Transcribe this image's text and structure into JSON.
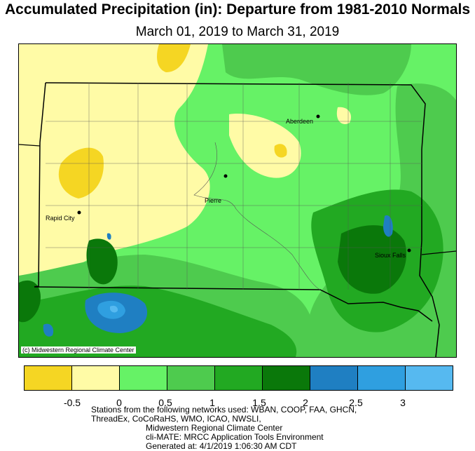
{
  "title": "Accumulated Precipitation (in): Departure from 1981-2010 Normals",
  "subtitle": "March 01, 2019 to March 31, 2019",
  "credit": "(c) Midwestern Regional Climate Center",
  "cities": {
    "aberdeen": "Aberdeen",
    "pierre": "Pierre",
    "rapid_city": "Rapid City",
    "sioux_falls": "Sioux Falls"
  },
  "legend": {
    "colors": [
      "#f5d623",
      "#fffba6",
      "#66f266",
      "#4ecb4e",
      "#22a922",
      "#0a780a",
      "#1f7fc2",
      "#2f9fe0",
      "#56b9f0"
    ],
    "tick_labels": [
      "-0.5",
      "0",
      "0.5",
      "1",
      "1.5",
      "2",
      "2.5",
      "3"
    ]
  },
  "footer": {
    "line1": "Stations from the following networks used: WBAN, COOP, FAA, GHCN,",
    "line2": "ThreadEx, CoCoRaHS, WMO, ICAO, NWSLI,",
    "line3": "Midwestern Regional Climate Center",
    "line4": "cli-MATE: MRCC Application Tools Environment",
    "line5": "Generated at: 4/1/2019 1:06:30 AM CDT"
  }
}
